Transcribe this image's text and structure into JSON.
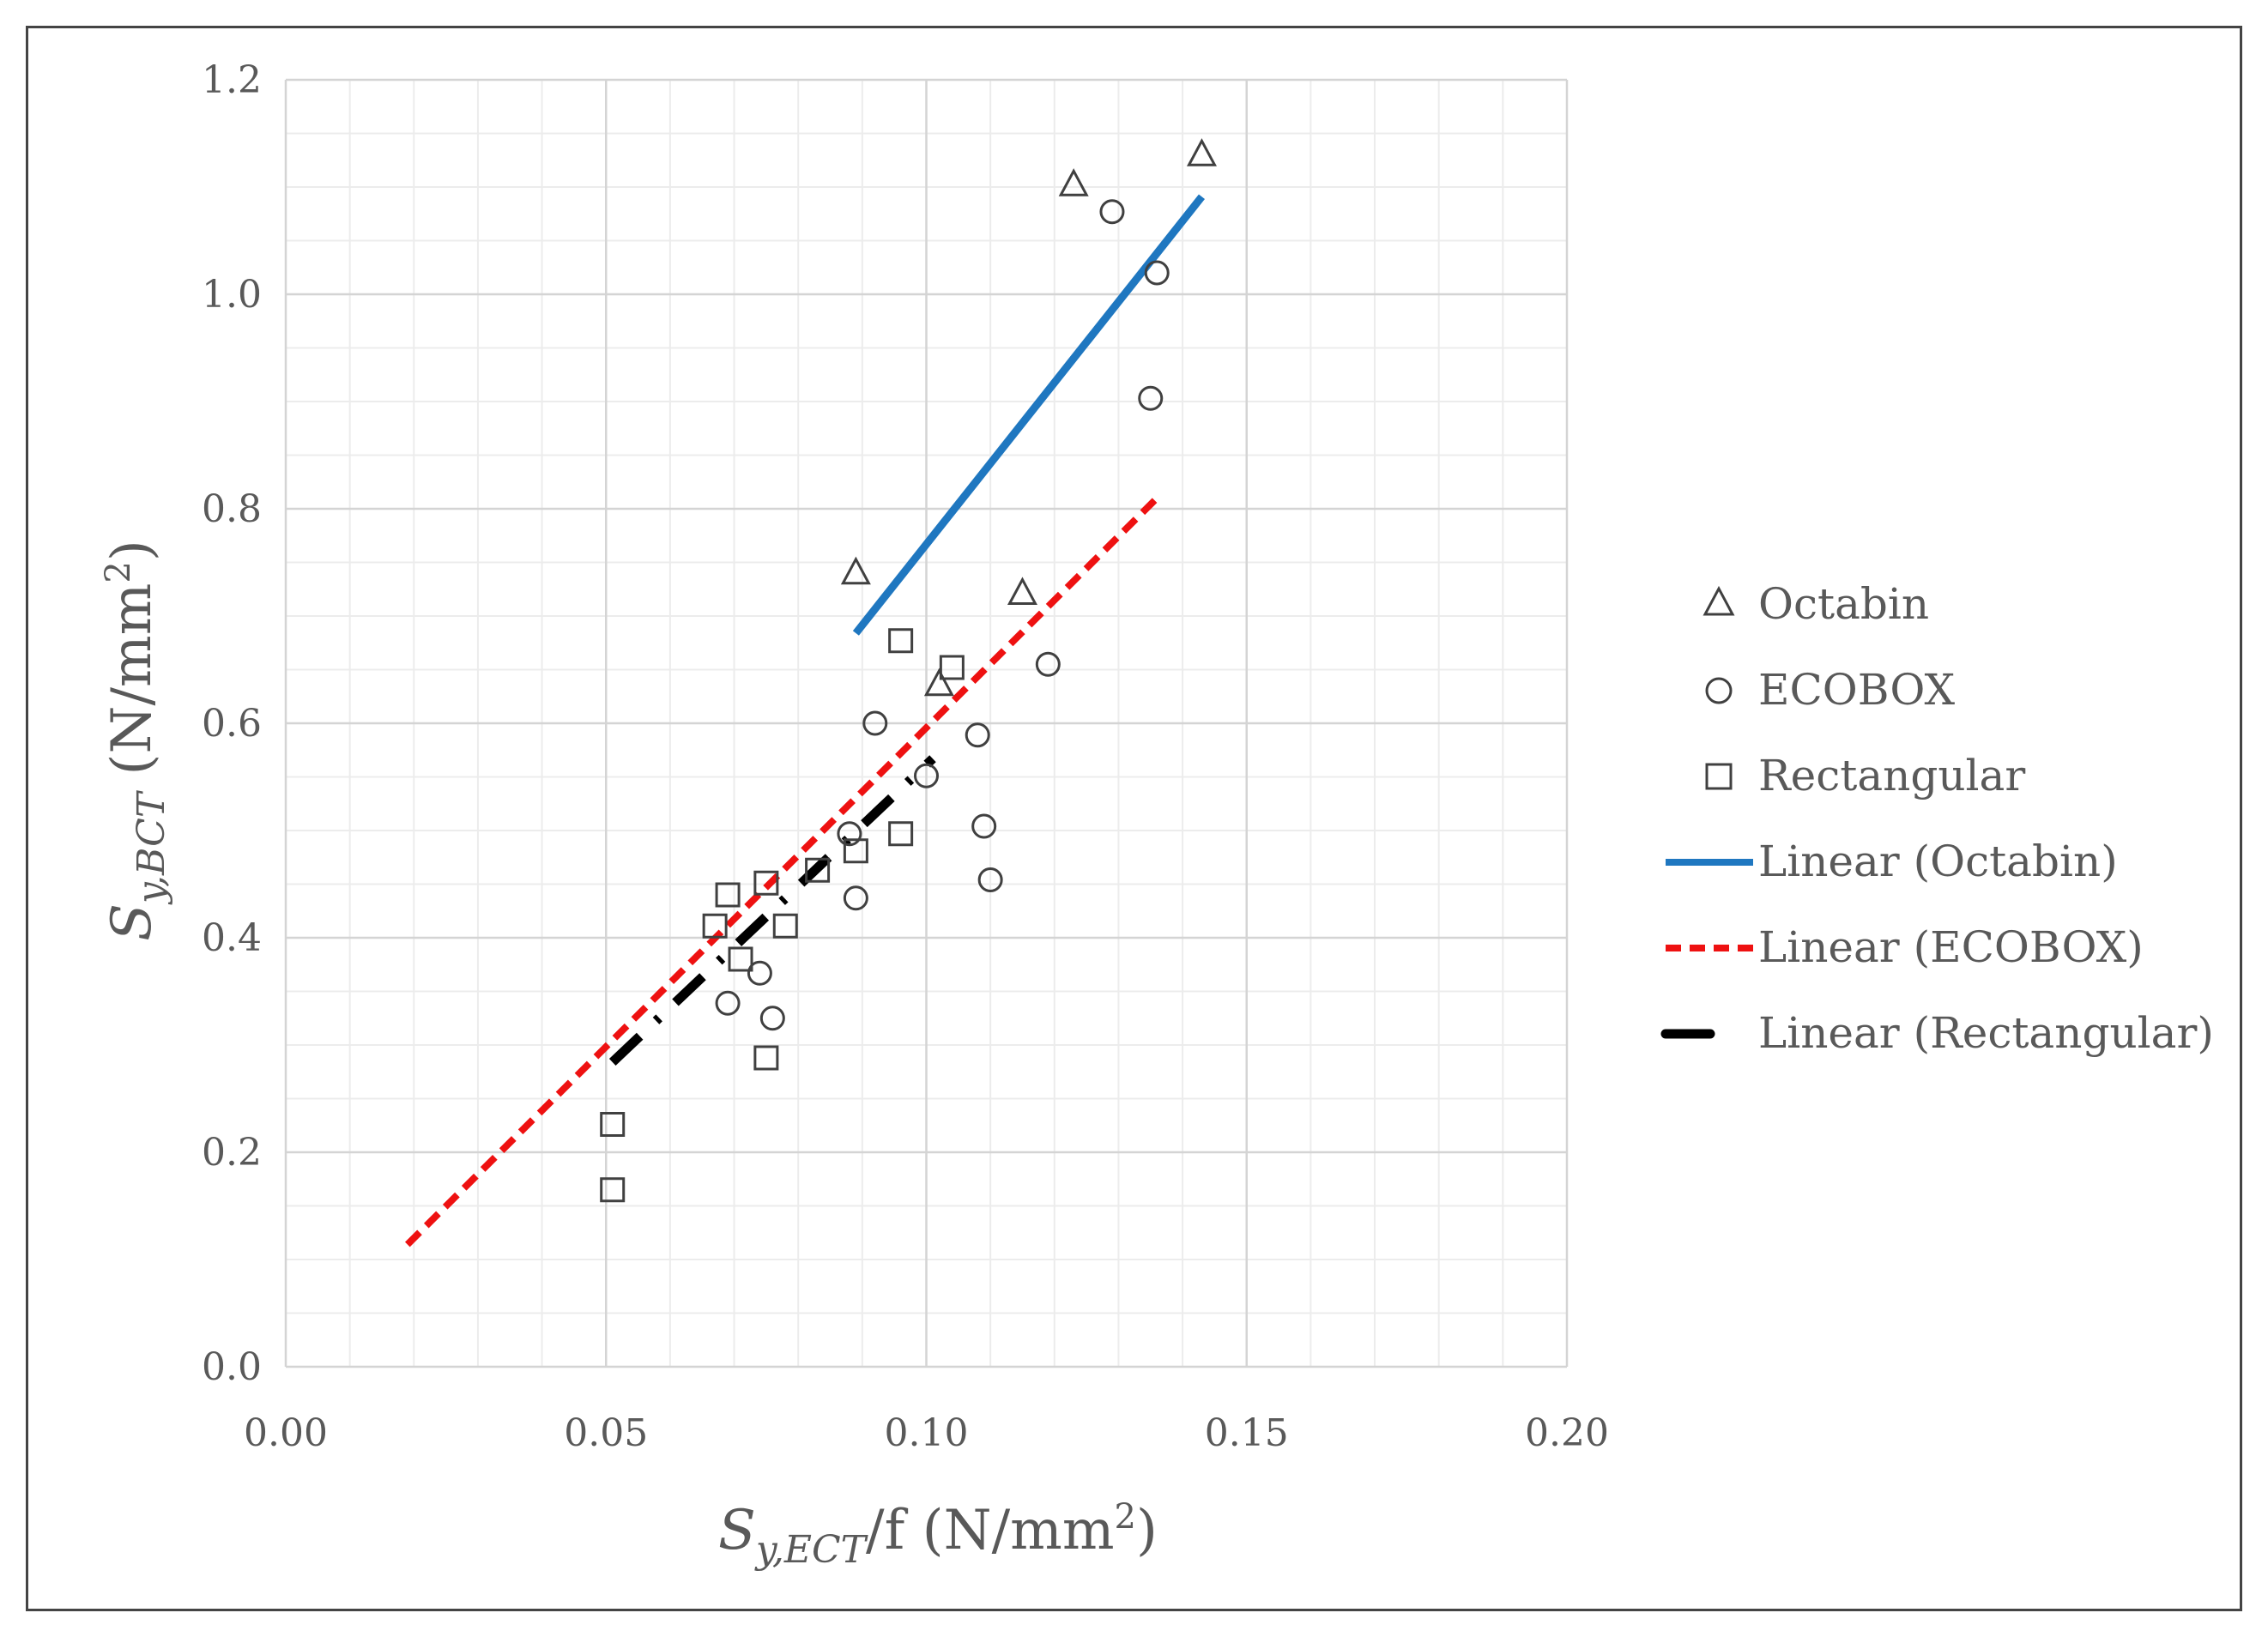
{
  "chart_data": {
    "type": "scatter",
    "title": "",
    "xlabel": {
      "main": "S",
      "sub": "y,ECT",
      "after": "/f (N/mm",
      "sup": "2",
      "close": ")"
    },
    "ylabel": {
      "main": "S",
      "sub": "y,BCT",
      "after": " (N/mm",
      "sup": "2",
      "close": ")"
    },
    "xlim": [
      0,
      0.2
    ],
    "ylim": [
      0,
      1.2
    ],
    "x_ticks": [
      0.0,
      0.05,
      0.1,
      0.15,
      0.2
    ],
    "x_tick_labels": [
      "0.00",
      "0.05",
      "0.10",
      "0.15",
      "0.20"
    ],
    "y_ticks": [
      0.0,
      0.2,
      0.4,
      0.6,
      0.8,
      1.0,
      1.2
    ],
    "y_tick_labels": [
      "0.0",
      "0.2",
      "0.4",
      "0.6",
      "0.8",
      "1.0",
      "1.2"
    ],
    "grid": true,
    "legend_position": "right",
    "series": [
      {
        "name": "Octabin",
        "marker": "triangle",
        "points": [
          [
            0.089,
            0.741
          ],
          [
            0.102,
            0.637
          ],
          [
            0.115,
            0.722
          ],
          [
            0.123,
            1.103
          ],
          [
            0.143,
            1.131
          ]
        ]
      },
      {
        "name": "ECOBOX",
        "marker": "circle",
        "points": [
          [
            0.069,
            0.339
          ],
          [
            0.074,
            0.367
          ],
          [
            0.076,
            0.325
          ],
          [
            0.088,
            0.497
          ],
          [
            0.089,
            0.437
          ],
          [
            0.092,
            0.6
          ],
          [
            0.1,
            0.551
          ],
          [
            0.108,
            0.589
          ],
          [
            0.109,
            0.504
          ],
          [
            0.11,
            0.454
          ],
          [
            0.119,
            0.655
          ],
          [
            0.129,
            1.077
          ],
          [
            0.135,
            0.903
          ],
          [
            0.136,
            1.02
          ]
        ]
      },
      {
        "name": "Rectangular",
        "marker": "square",
        "points": [
          [
            0.051,
            0.165
          ],
          [
            0.051,
            0.226
          ],
          [
            0.067,
            0.411
          ],
          [
            0.069,
            0.44
          ],
          [
            0.071,
            0.38
          ],
          [
            0.075,
            0.451
          ],
          [
            0.075,
            0.288
          ],
          [
            0.078,
            0.411
          ],
          [
            0.083,
            0.463
          ],
          [
            0.089,
            0.481
          ],
          [
            0.096,
            0.677
          ],
          [
            0.096,
            0.497
          ],
          [
            0.104,
            0.652
          ]
        ]
      }
    ],
    "trendlines": [
      {
        "name": "Linear (Octabin)",
        "color": "#1f77c0",
        "style": "solid",
        "x": [
          0.089,
          0.143
        ],
        "y": [
          0.684,
          1.091
        ]
      },
      {
        "name": "Linear (ECOBOX)",
        "color": "#ee1111",
        "style": "dashed",
        "x": [
          0.019,
          0.136
        ],
        "y": [
          0.114,
          0.81
        ]
      },
      {
        "name": "Linear (Rectangular)",
        "color": "#000000",
        "style": "dashdot",
        "x": [
          0.051,
          0.101
        ],
        "y": [
          0.284,
          0.567
        ]
      }
    ]
  }
}
